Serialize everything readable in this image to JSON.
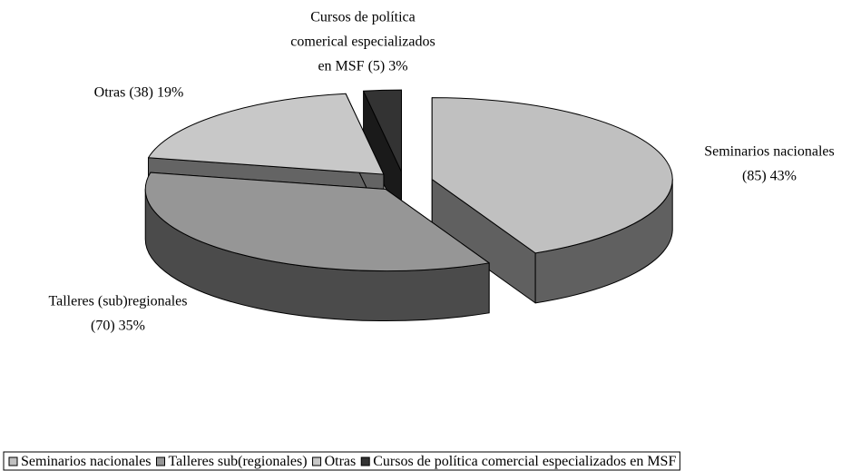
{
  "chart_data": {
    "type": "pie",
    "categories": [
      "Seminarios nacionales",
      "Talleres sub(regionales)",
      "Otras",
      "Cursos de política comercial especializados en MSF"
    ],
    "values": [
      85,
      70,
      38,
      5
    ],
    "value_labels": [
      [
        "Seminarios nacionales",
        "(85) 43%"
      ],
      [
        "Talleres (sub)regionales",
        "(70) 35%"
      ],
      [
        "Otras (38) 19%"
      ],
      [
        "Cursos de política",
        "comerical especializados",
        "en MSF (5) 3%"
      ]
    ],
    "colors": [
      "#c0c0c0",
      "#969696",
      "#c8c8c8",
      "#333333"
    ],
    "legend": "bottom"
  }
}
